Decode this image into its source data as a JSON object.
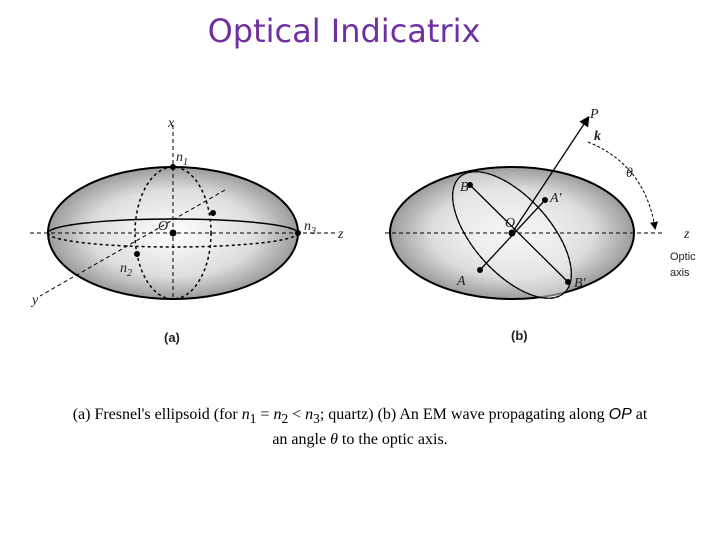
{
  "header": {
    "title": "Optical Indicatrix"
  },
  "figure_a": {
    "labels": {
      "x": "x",
      "n1": {
        "symbol": "n",
        "sub": "1"
      },
      "O": "O",
      "n3": {
        "symbol": "n",
        "sub": "3"
      },
      "z": "z",
      "n2": {
        "symbol": "n",
        "sub": "2"
      },
      "y": "y"
    },
    "caption": "(a)"
  },
  "figure_b": {
    "labels": {
      "P": "P",
      "k": "k",
      "theta": "θ",
      "B": "B",
      "A_prime": "A′",
      "O": "O",
      "z": "z",
      "optic": "Optic",
      "axis": "axis",
      "A": "A",
      "B_prime": "B′"
    },
    "caption": "(b)"
  },
  "caption": {
    "line1": [
      "(a) Fresnel's ellipsoid (for ",
      "n",
      "1",
      " = ",
      "n",
      "2",
      " < ",
      "n",
      "3",
      "; quartz) (b) An EM wave propagating along ",
      "OP",
      " at"
    ],
    "line2": [
      "an angle ",
      "θ",
      " to the optic axis."
    ]
  }
}
